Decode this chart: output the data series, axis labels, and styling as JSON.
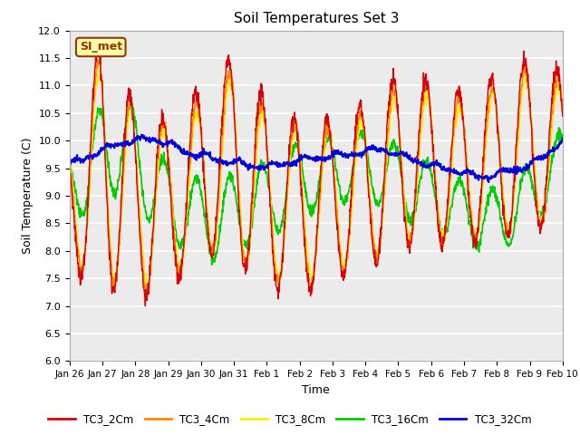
{
  "title": "Soil Temperatures Set 3",
  "xlabel": "Time",
  "ylabel": "Soil Temperature (C)",
  "ylim": [
    6.0,
    12.0
  ],
  "yticks": [
    6.0,
    6.5,
    7.0,
    7.5,
    8.0,
    8.5,
    9.0,
    9.5,
    10.0,
    10.5,
    11.0,
    11.5,
    12.0
  ],
  "x_labels": [
    "Jan 26",
    "Jan 27",
    "Jan 28",
    "Jan 29",
    "Jan 30",
    "Jan 31",
    "Feb 1",
    "Feb 2",
    "Feb 3",
    "Feb 4",
    "Feb 5",
    "Feb 6",
    "Feb 7",
    "Feb 8",
    "Feb 9",
    "Feb 10"
  ],
  "series_colors": [
    "#dd0000",
    "#ff8800",
    "#ffee00",
    "#00cc00",
    "#0000dd"
  ],
  "series_names": [
    "TC3_2Cm",
    "TC3_4Cm",
    "TC3_8Cm",
    "TC3_16Cm",
    "TC3_32Cm"
  ],
  "plot_bg": "#ebebeb",
  "fig_bg": "#ffffff",
  "annotation_text": "SI_met",
  "annotation_bg": "#ffffaa",
  "annotation_border": "#993300",
  "grid_color": "#ffffff",
  "figsize": [
    6.4,
    4.8
  ],
  "dpi": 100
}
